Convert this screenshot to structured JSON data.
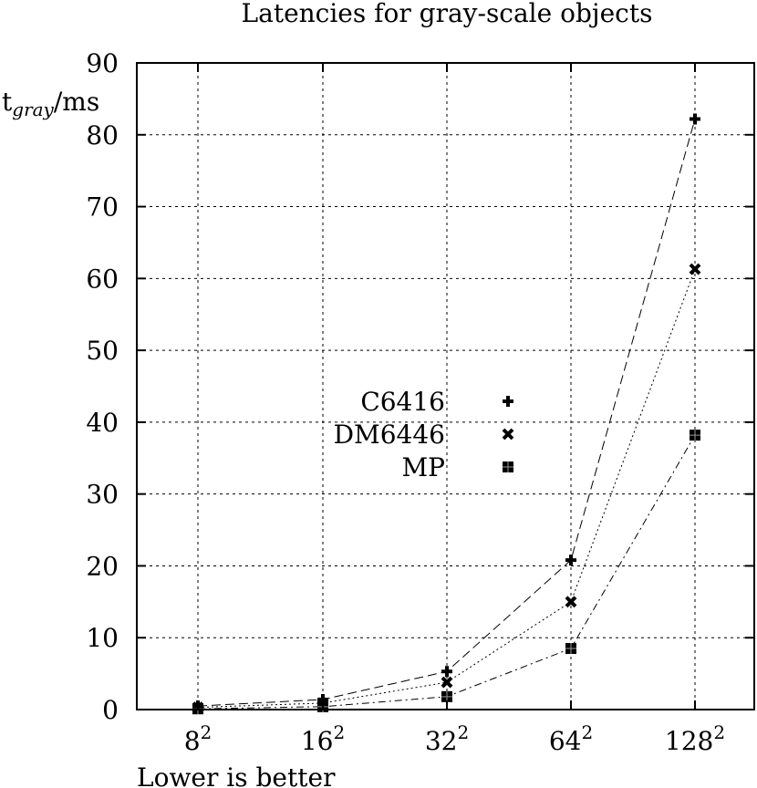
{
  "chart_data": {
    "type": "line",
    "title": "Latencies for gray-scale objects",
    "ylabel": {
      "base": "t",
      "subscript": "gray",
      "unit": "/ms"
    },
    "xlabel": "Lower is better",
    "categories": [
      {
        "base": "8",
        "exp": "2"
      },
      {
        "base": "16",
        "exp": "2"
      },
      {
        "base": "32",
        "exp": "2"
      },
      {
        "base": "64",
        "exp": "2"
      },
      {
        "base": "128",
        "exp": "2"
      }
    ],
    "ylim": [
      0,
      90
    ],
    "yticks": [
      "0",
      "10",
      "20",
      "30",
      "40",
      "50",
      "60",
      "70",
      "80",
      "90"
    ],
    "grid": true,
    "legend_position": "center",
    "series": [
      {
        "name": "C6416",
        "marker": "plus",
        "dash": "dashed",
        "values": [
          0.5,
          1.4,
          5.3,
          20.8,
          82.2
        ]
      },
      {
        "name": "DM6446",
        "marker": "cross",
        "dash": "dotted",
        "values": [
          0.3,
          0.9,
          3.8,
          15.0,
          61.3
        ]
      },
      {
        "name": "MP",
        "marker": "square",
        "dash": "dashdot",
        "values": [
          0.1,
          0.4,
          1.8,
          8.5,
          38.2
        ]
      }
    ]
  }
}
